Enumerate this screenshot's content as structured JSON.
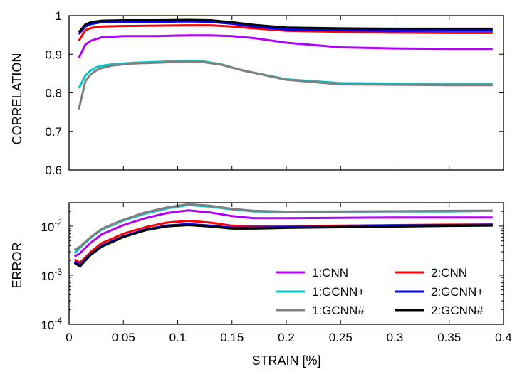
{
  "chart_data": [
    {
      "type": "line",
      "ylabel": "CORRELATION",
      "xlim": [
        0,
        0.4
      ],
      "ylim": [
        0.6,
        1.0
      ],
      "y_ticks": [
        {
          "value": 0.6,
          "label": "0.6"
        },
        {
          "value": 0.7,
          "label": "0.7"
        },
        {
          "value": 0.8,
          "label": "0.8"
        },
        {
          "value": 0.9,
          "label": "0.9"
        },
        {
          "value": 1.0,
          "label": "1"
        }
      ],
      "grid": false,
      "series": [
        {
          "name": "1:CNN",
          "color": "#b200ff",
          "x": [
            0.009,
            0.015,
            0.02,
            0.03,
            0.05,
            0.08,
            0.11,
            0.13,
            0.15,
            0.17,
            0.2,
            0.25,
            0.3,
            0.35,
            0.39
          ],
          "y": [
            0.89,
            0.925,
            0.935,
            0.944,
            0.947,
            0.947,
            0.949,
            0.949,
            0.947,
            0.942,
            0.93,
            0.918,
            0.915,
            0.914,
            0.914
          ]
        },
        {
          "name": "1:GCNN+",
          "color": "#00c8c8",
          "x": [
            0.009,
            0.015,
            0.02,
            0.025,
            0.03,
            0.04,
            0.06,
            0.08,
            0.1,
            0.12,
            0.14,
            0.16,
            0.2,
            0.25,
            0.3,
            0.35,
            0.39
          ],
          "y": [
            0.812,
            0.845,
            0.858,
            0.866,
            0.87,
            0.874,
            0.878,
            0.88,
            0.882,
            0.883,
            0.874,
            0.858,
            0.835,
            0.825,
            0.824,
            0.823,
            0.823
          ]
        },
        {
          "name": "1:GCNN#",
          "color": "#808080",
          "x": [
            0.009,
            0.015,
            0.02,
            0.025,
            0.03,
            0.04,
            0.06,
            0.08,
            0.1,
            0.12,
            0.14,
            0.16,
            0.2,
            0.25,
            0.3,
            0.35,
            0.39
          ],
          "y": [
            0.757,
            0.83,
            0.848,
            0.858,
            0.864,
            0.871,
            0.876,
            0.878,
            0.88,
            0.881,
            0.873,
            0.858,
            0.834,
            0.822,
            0.821,
            0.82,
            0.82
          ]
        },
        {
          "name": "2:CNN",
          "color": "#ff0000",
          "x": [
            0.009,
            0.015,
            0.02,
            0.03,
            0.05,
            0.08,
            0.11,
            0.13,
            0.15,
            0.17,
            0.2,
            0.25,
            0.3,
            0.35,
            0.39
          ],
          "y": [
            0.935,
            0.962,
            0.968,
            0.972,
            0.973,
            0.974,
            0.975,
            0.975,
            0.972,
            0.967,
            0.961,
            0.958,
            0.956,
            0.955,
            0.955
          ]
        },
        {
          "name": "2:GCNN+",
          "color": "#0000ff",
          "x": [
            0.009,
            0.015,
            0.02,
            0.03,
            0.05,
            0.08,
            0.11,
            0.13,
            0.15,
            0.17,
            0.2,
            0.25,
            0.3,
            0.35,
            0.39
          ],
          "y": [
            0.952,
            0.972,
            0.978,
            0.983,
            0.984,
            0.984,
            0.985,
            0.984,
            0.979,
            0.972,
            0.964,
            0.962,
            0.961,
            0.961,
            0.961
          ]
        },
        {
          "name": "2:GCNN#",
          "color": "#000000",
          "x": [
            0.009,
            0.015,
            0.02,
            0.03,
            0.05,
            0.08,
            0.11,
            0.13,
            0.15,
            0.17,
            0.2,
            0.25,
            0.3,
            0.35,
            0.39
          ],
          "y": [
            0.957,
            0.977,
            0.983,
            0.987,
            0.988,
            0.988,
            0.989,
            0.988,
            0.983,
            0.976,
            0.969,
            0.967,
            0.966,
            0.966,
            0.966
          ]
        }
      ]
    },
    {
      "type": "line",
      "xlabel": "STRAIN [%]",
      "ylabel": "ERROR",
      "y_scale": "log",
      "xlim": [
        0,
        0.4
      ],
      "ylim": [
        0.0001,
        0.03
      ],
      "x_ticks": [
        {
          "value": 0,
          "label": "0"
        },
        {
          "value": 0.05,
          "label": "0.05"
        },
        {
          "value": 0.1,
          "label": "0.1"
        },
        {
          "value": 0.15,
          "label": "0.15"
        },
        {
          "value": 0.2,
          "label": "0.2"
        },
        {
          "value": 0.25,
          "label": "0.25"
        },
        {
          "value": 0.3,
          "label": "0.3"
        },
        {
          "value": 0.35,
          "label": "0.35"
        },
        {
          "value": 0.4,
          "label": "0.4"
        }
      ],
      "y_ticks": [
        {
          "value": 0.0001,
          "base": "10",
          "exp": "-4"
        },
        {
          "value": 0.001,
          "base": "10",
          "exp": "-3"
        },
        {
          "value": 0.01,
          "base": "10",
          "exp": "-2"
        }
      ],
      "grid": false,
      "legend_position": "bottom-right",
      "series": [
        {
          "name": "1:CNN",
          "color": "#b200ff",
          "x": [
            0.005,
            0.01,
            0.015,
            0.02,
            0.03,
            0.05,
            0.07,
            0.09,
            0.11,
            0.13,
            0.15,
            0.17,
            0.2,
            0.25,
            0.3,
            0.35,
            0.39
          ],
          "y": [
            0.0024,
            0.0028,
            0.0036,
            0.0046,
            0.0068,
            0.0105,
            0.0145,
            0.0185,
            0.021,
            0.019,
            0.016,
            0.0145,
            0.0145,
            0.0148,
            0.015,
            0.015,
            0.015
          ]
        },
        {
          "name": "1:GCNN+",
          "color": "#00c8c8",
          "x": [
            0.005,
            0.01,
            0.015,
            0.02,
            0.03,
            0.05,
            0.07,
            0.09,
            0.11,
            0.13,
            0.15,
            0.17,
            0.2,
            0.25,
            0.3,
            0.35,
            0.39
          ],
          "y": [
            0.0028,
            0.0036,
            0.0046,
            0.0058,
            0.0085,
            0.013,
            0.018,
            0.023,
            0.027,
            0.025,
            0.022,
            0.02,
            0.0195,
            0.0198,
            0.02,
            0.02,
            0.0205
          ]
        },
        {
          "name": "1:GCNN#",
          "color": "#808080",
          "x": [
            0.005,
            0.01,
            0.015,
            0.02,
            0.03,
            0.05,
            0.07,
            0.09,
            0.11,
            0.13,
            0.15,
            0.17,
            0.2,
            0.25,
            0.3,
            0.35,
            0.39
          ],
          "y": [
            0.0033,
            0.0038,
            0.0048,
            0.006,
            0.0088,
            0.0135,
            0.019,
            0.024,
            0.028,
            0.026,
            0.0225,
            0.0205,
            0.0198,
            0.02,
            0.0202,
            0.0205,
            0.0207
          ]
        },
        {
          "name": "2:CNN",
          "color": "#ff0000",
          "x": [
            0.005,
            0.01,
            0.015,
            0.02,
            0.03,
            0.05,
            0.07,
            0.09,
            0.11,
            0.13,
            0.15,
            0.17,
            0.2,
            0.25,
            0.3,
            0.35,
            0.39
          ],
          "y": [
            0.0021,
            0.0018,
            0.0023,
            0.003,
            0.0045,
            0.007,
            0.0095,
            0.0118,
            0.0128,
            0.0118,
            0.0102,
            0.0098,
            0.0099,
            0.0102,
            0.0105,
            0.0107,
            0.0108
          ]
        },
        {
          "name": "2:GCNN+",
          "color": "#0000ff",
          "x": [
            0.005,
            0.01,
            0.015,
            0.02,
            0.03,
            0.05,
            0.07,
            0.09,
            0.11,
            0.13,
            0.15,
            0.17,
            0.2,
            0.25,
            0.3,
            0.35,
            0.39
          ],
          "y": [
            0.0019,
            0.0016,
            0.0021,
            0.0027,
            0.004,
            0.0062,
            0.0085,
            0.0103,
            0.011,
            0.0102,
            0.0093,
            0.0093,
            0.0095,
            0.0099,
            0.0102,
            0.0105,
            0.0107
          ]
        },
        {
          "name": "2:GCNN#",
          "color": "#000000",
          "x": [
            0.005,
            0.01,
            0.015,
            0.02,
            0.03,
            0.05,
            0.07,
            0.09,
            0.11,
            0.13,
            0.15,
            0.17,
            0.2,
            0.25,
            0.3,
            0.35,
            0.39
          ],
          "y": [
            0.0018,
            0.0015,
            0.002,
            0.0026,
            0.0038,
            0.006,
            0.0082,
            0.0099,
            0.0105,
            0.0098,
            0.0089,
            0.0089,
            0.0092,
            0.0095,
            0.0098,
            0.0101,
            0.0103
          ]
        }
      ]
    }
  ]
}
